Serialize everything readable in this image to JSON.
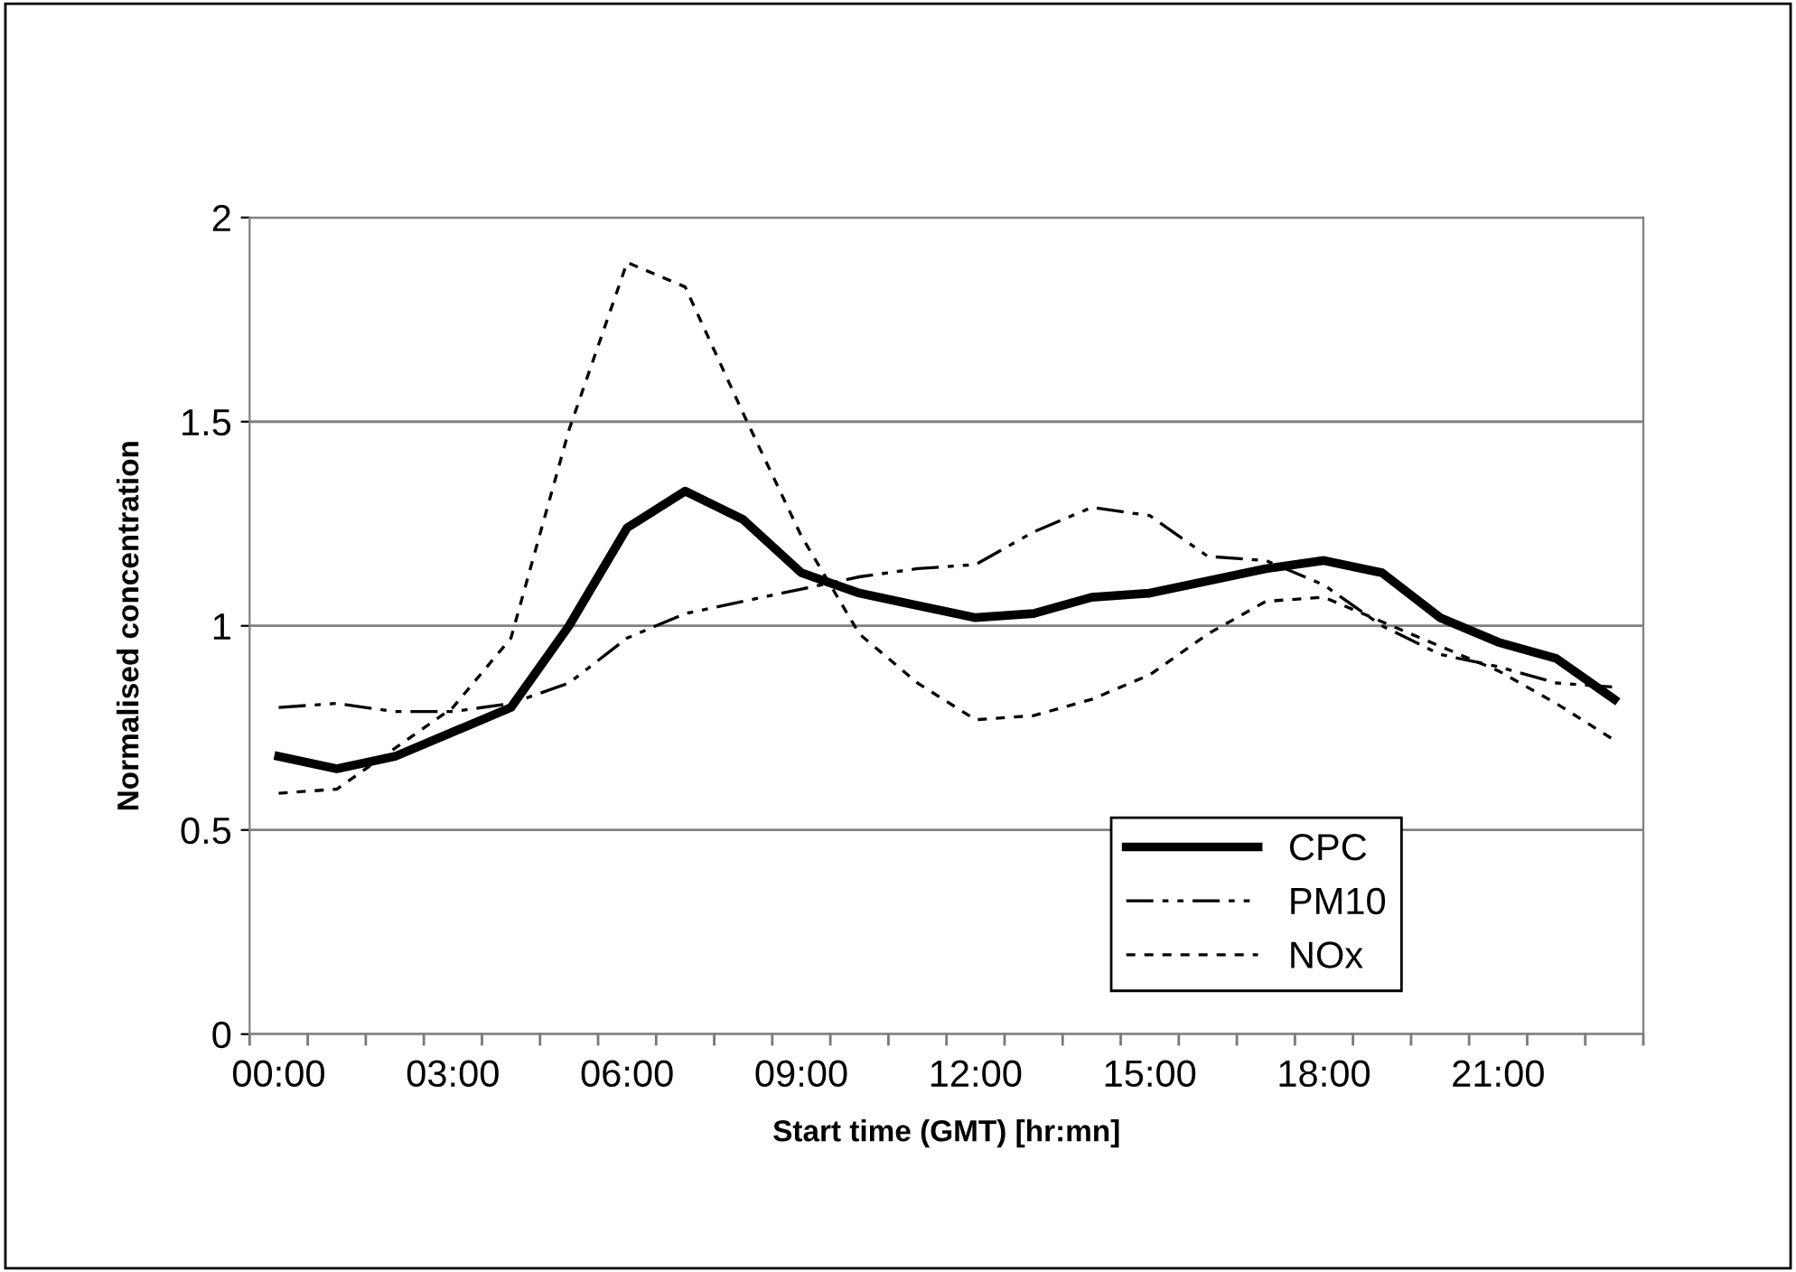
{
  "chart_data": {
    "type": "line",
    "xlabel": "Start time (GMT) [hr:mn]",
    "ylabel": "Normalised concentration",
    "categories": [
      "00:00",
      null,
      null,
      "03:00",
      null,
      null,
      "06:00",
      null,
      null,
      "09:00",
      null,
      null,
      "12:00",
      null,
      null,
      "15:00",
      null,
      null,
      "18:00",
      null,
      null,
      "21:00",
      null,
      null
    ],
    "series": [
      {
        "name": "CPC",
        "color": "#000000",
        "line_style": "solid",
        "values": [
          0.68,
          0.65,
          0.68,
          0.74,
          0.8,
          1.0,
          1.24,
          1.33,
          1.26,
          1.13,
          1.08,
          1.05,
          1.02,
          1.03,
          1.07,
          1.08,
          1.11,
          1.14,
          1.16,
          1.13,
          1.02,
          0.96,
          0.92,
          0.82
        ]
      },
      {
        "name": "PM10",
        "color": "#000000",
        "line_style": "dashed",
        "values": [
          0.8,
          0.81,
          0.79,
          0.79,
          0.81,
          0.86,
          0.97,
          1.03,
          1.06,
          1.09,
          1.12,
          1.14,
          1.15,
          1.23,
          1.29,
          1.27,
          1.17,
          1.16,
          1.1,
          1.0,
          0.93,
          0.9,
          0.86,
          0.85
        ]
      },
      {
        "name": "NOx",
        "color": "#000000",
        "line_style": "dotted",
        "values": [
          0.59,
          0.6,
          0.7,
          0.8,
          0.97,
          1.48,
          1.89,
          1.83,
          1.52,
          1.22,
          0.98,
          0.86,
          0.77,
          0.78,
          0.82,
          0.88,
          0.98,
          1.06,
          1.07,
          1.01,
          0.95,
          0.89,
          0.81,
          0.72
        ]
      }
    ],
    "ylim": [
      0,
      2
    ],
    "yticks": [
      0,
      0.5,
      1,
      1.5,
      2
    ],
    "grid": "y",
    "legend": "bottom right",
    "marker": "none"
  }
}
